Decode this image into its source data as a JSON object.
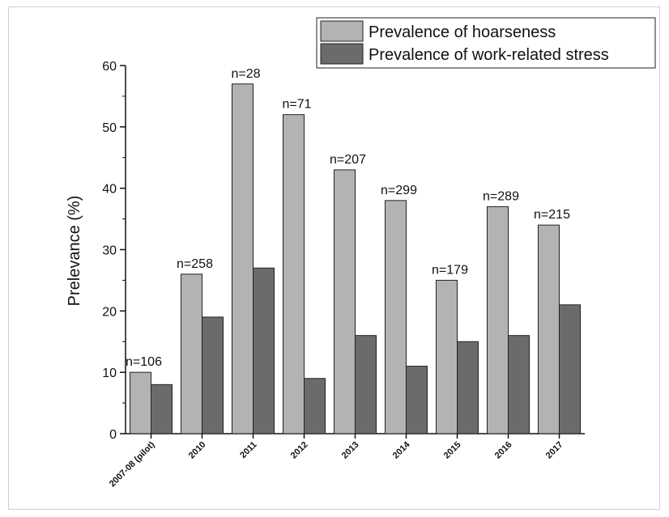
{
  "chart_data": {
    "type": "bar",
    "title": "",
    "xlabel": "",
    "ylabel": "Prelevance (%)",
    "ylim": [
      0,
      60
    ],
    "yticks": [
      0,
      10,
      20,
      30,
      40,
      50,
      60
    ],
    "grid": false,
    "legend_position": "top-right",
    "categories": [
      "2007-08 (pilot)",
      "2010",
      "2011",
      "2012",
      "2013",
      "2014",
      "2015",
      "2016",
      "2017"
    ],
    "annotations": [
      "n=106",
      "n=258",
      "n=28",
      "n=71",
      "n=207",
      "n=299",
      "n=179",
      "n=289",
      "n=215"
    ],
    "series": [
      {
        "name": "Prevalence of hoarseness",
        "color": "#b3b3b3",
        "values": [
          10,
          26,
          57,
          52,
          43,
          38,
          25,
          37,
          34
        ]
      },
      {
        "name": "Prevalence of work-related stress",
        "color": "#6b6b6b",
        "values": [
          8,
          19,
          27,
          9,
          16,
          11,
          15,
          16,
          21
        ]
      }
    ]
  }
}
